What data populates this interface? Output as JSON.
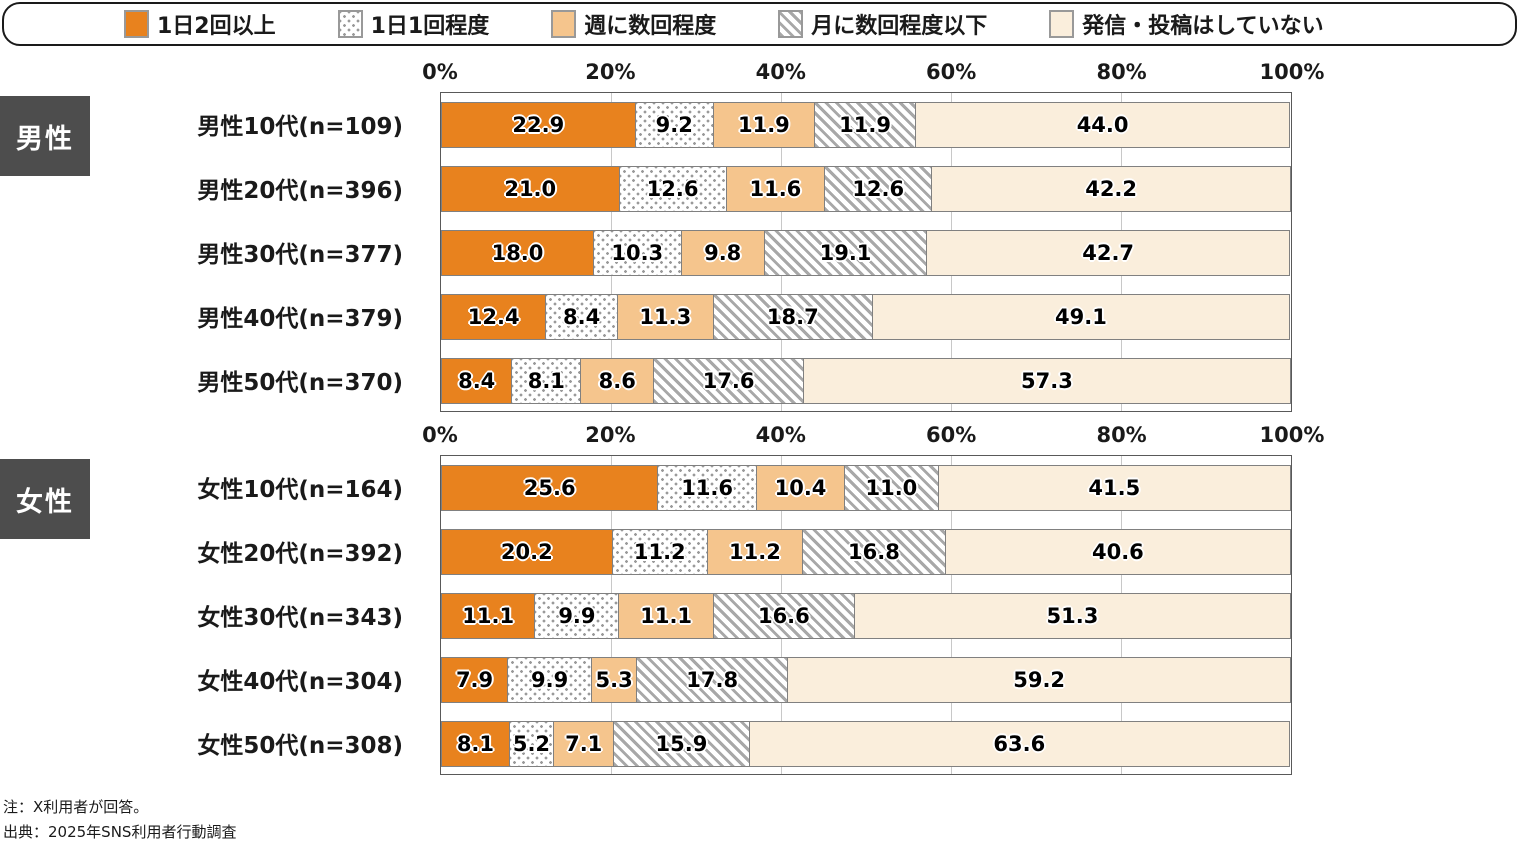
{
  "legend": {
    "items": [
      {
        "label": "1日2回以上",
        "swatch": "solid-orange-swatch"
      },
      {
        "label": "1日1回程度",
        "swatch": "dot-pattern-swatch"
      },
      {
        "label": "週に数回程度",
        "swatch": "light-orange-swatch"
      },
      {
        "label": "月に数回程度以下",
        "swatch": "diagonal-hatch-swatch"
      },
      {
        "label": "発信・投稿はしていない",
        "swatch": "cream-swatch"
      }
    ]
  },
  "colors": {
    "solid_orange": "#E8821E",
    "light_orange": "#F5C58D",
    "cream": "#FAEEDC",
    "pattern_gray": "#A8A8A8",
    "segment_border": "#808080",
    "gender_badge_bg": "#4D4D4D",
    "legend_border": "#1A1A1A"
  },
  "axis": {
    "ticks": [
      "0%",
      "20%",
      "40%",
      "60%",
      "80%",
      "100%"
    ]
  },
  "notes": {
    "note1": "注：X利用者が回答。",
    "note2": "出典：2025年SNS利用者行動調査"
  },
  "chart_data": [
    {
      "type": "bar",
      "stacked": true,
      "orientation": "horizontal",
      "group_label": "男性",
      "xlim": [
        0,
        100
      ],
      "tick_step": 20,
      "grid": true,
      "legend_position": "top",
      "value_format": "one-decimal",
      "categories": [
        "男性10代(n=109)",
        "男性20代(n=396)",
        "男性30代(n=377)",
        "男性40代(n=379)",
        "男性50代(n=370)"
      ],
      "series": [
        {
          "name": "1日2回以上",
          "values": [
            22.9,
            21.0,
            18.0,
            12.4,
            8.4
          ]
        },
        {
          "name": "1日1回程度",
          "values": [
            9.2,
            12.6,
            10.3,
            8.4,
            8.1
          ]
        },
        {
          "name": "週に数回程度",
          "values": [
            11.9,
            11.6,
            9.8,
            11.3,
            8.6
          ]
        },
        {
          "name": "月に数回程度以下",
          "values": [
            11.9,
            12.6,
            19.1,
            18.7,
            17.6
          ]
        },
        {
          "name": "発信・投稿はしていない",
          "values": [
            44.0,
            42.2,
            42.7,
            49.1,
            57.3
          ]
        }
      ]
    },
    {
      "type": "bar",
      "stacked": true,
      "orientation": "horizontal",
      "group_label": "女性",
      "xlim": [
        0,
        100
      ],
      "tick_step": 20,
      "grid": true,
      "legend_position": "top",
      "value_format": "one-decimal",
      "categories": [
        "女性10代(n=164)",
        "女性20代(n=392)",
        "女性30代(n=343)",
        "女性40代(n=304)",
        "女性50代(n=308)"
      ],
      "series": [
        {
          "name": "1日2回以上",
          "values": [
            25.6,
            20.2,
            11.1,
            7.9,
            8.1
          ]
        },
        {
          "name": "1日1回程度",
          "values": [
            11.6,
            11.2,
            9.9,
            9.9,
            5.2
          ]
        },
        {
          "name": "週に数回程度",
          "values": [
            10.4,
            11.2,
            11.1,
            5.3,
            7.1
          ]
        },
        {
          "name": "月に数回程度以下",
          "values": [
            11.0,
            16.8,
            16.6,
            17.8,
            15.9
          ]
        },
        {
          "name": "発信・投稿はしていない",
          "values": [
            41.5,
            40.6,
            51.3,
            59.2,
            63.6
          ]
        }
      ]
    }
  ]
}
